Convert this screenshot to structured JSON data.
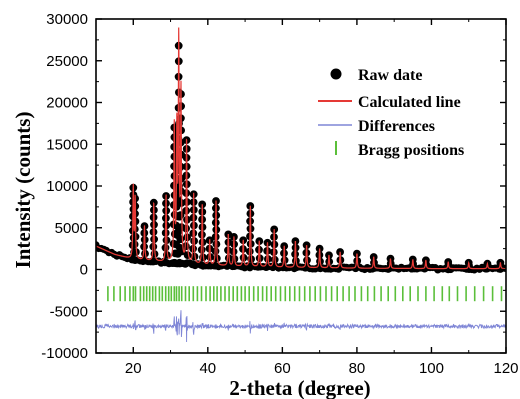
{
  "chart_data": {
    "type": "scatter",
    "xlabel": "2-theta (degree)",
    "ylabel": "Intensity (counts)",
    "xlim": [
      10,
      120
    ],
    "ylim": [
      -10000,
      30000
    ],
    "x_ticks": [
      20,
      40,
      60,
      80,
      100,
      120
    ],
    "x_tick_labels": [
      "20",
      "40",
      "60",
      "80",
      "100",
      "120"
    ],
    "y_ticks": [
      -10000,
      -5000,
      0,
      5000,
      10000,
      15000,
      20000,
      25000,
      30000
    ],
    "y_tick_labels": [
      "-10000",
      "-5000",
      "0",
      "5000",
      "10000",
      "15000",
      "20000",
      "25000",
      "30000"
    ],
    "grid": false,
    "legend_position": "top-right",
    "colors": {
      "raw": "#000000",
      "calculated": "#e53935",
      "difference": "#7f86d6",
      "bragg": "#5bbf3a"
    },
    "series": [
      {
        "name": "Raw date",
        "marker": "filled-circle",
        "background": [
          [
            10,
            2800
          ],
          [
            15,
            1800
          ],
          [
            20,
            1200
          ],
          [
            30,
            800
          ],
          [
            40,
            500
          ],
          [
            50,
            350
          ],
          [
            60,
            250
          ],
          [
            80,
            150
          ],
          [
            100,
            100
          ],
          [
            120,
            100
          ]
        ],
        "points": [
          [
            20.0,
            9800
          ],
          [
            20.5,
            8500
          ],
          [
            23.0,
            5200
          ],
          [
            25.5,
            8000
          ],
          [
            28.8,
            8800
          ],
          [
            31.0,
            17000
          ],
          [
            31.7,
            16500
          ],
          [
            32.2,
            26800
          ],
          [
            32.8,
            21000
          ],
          [
            34.3,
            15500
          ],
          [
            36.2,
            9000
          ],
          [
            38.5,
            7800
          ],
          [
            40.5,
            3500
          ],
          [
            42.2,
            8200
          ],
          [
            45.5,
            4200
          ],
          [
            47.0,
            3900
          ],
          [
            49.5,
            3500
          ],
          [
            51.4,
            7600
          ],
          [
            53.8,
            3400
          ],
          [
            56.0,
            3200
          ],
          [
            57.8,
            4800
          ],
          [
            60.5,
            2800
          ],
          [
            63.5,
            3400
          ],
          [
            66.5,
            2900
          ],
          [
            70.0,
            2500
          ],
          [
            72.5,
            1700
          ],
          [
            75.5,
            2100
          ],
          [
            80.0,
            1900
          ],
          [
            84.5,
            1500
          ],
          [
            89.0,
            1300
          ],
          [
            95.0,
            1200
          ],
          [
            98.5,
            1100
          ],
          [
            104.5,
            900
          ],
          [
            110.0,
            800
          ],
          [
            115.0,
            700
          ],
          [
            118.5,
            800
          ]
        ]
      },
      {
        "name": "Calculated line",
        "style": "line"
      },
      {
        "name": "Differences",
        "style": "line",
        "baseline": -6800
      },
      {
        "name": "Bragg positions",
        "marker": "vertical-tick",
        "y_band": [
          -2000,
          -3800
        ],
        "positions": [
          13.2,
          14.8,
          16.5,
          17.8,
          19.1,
          20.0,
          20.6,
          21.9,
          22.8,
          23.6,
          24.4,
          25.2,
          26.0,
          27.0,
          27.8,
          28.7,
          29.5,
          30.2,
          31.0,
          31.6,
          32.3,
          33.0,
          34.0,
          35.0,
          36.1,
          37.2,
          38.3,
          39.5,
          40.6,
          41.6,
          42.5,
          43.5,
          44.6,
          45.7,
          46.8,
          47.9,
          49.0,
          50.0,
          51.1,
          52.3,
          53.5,
          54.7,
          55.8,
          57.0,
          58.2,
          59.5,
          60.8,
          62.0,
          63.3,
          64.6,
          66.0,
          67.4,
          68.8,
          70.2,
          71.7,
          73.2,
          74.7,
          76.3,
          77.9,
          79.5,
          81.2,
          82.9,
          84.7,
          86.5,
          88.4,
          90.3,
          92.3,
          94.3,
          96.4,
          98.5,
          100.7,
          102.9,
          104.8,
          107.0,
          109.3,
          111.6,
          114.0,
          116.4,
          118.8
        ]
      }
    ],
    "legend": [
      {
        "key": "raw",
        "label": "Raw date"
      },
      {
        "key": "calc",
        "label": "Calculated line"
      },
      {
        "key": "diff",
        "label": "Differences"
      },
      {
        "key": "bragg",
        "label": "Bragg positions"
      }
    ]
  }
}
